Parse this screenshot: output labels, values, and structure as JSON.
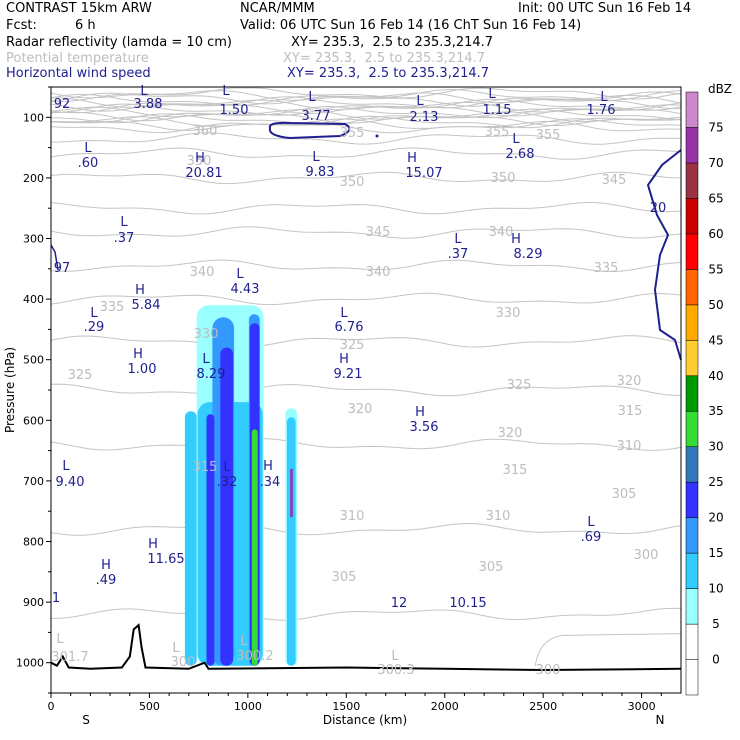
{
  "header": {
    "model": "CONTRAST 15km ARW",
    "org": "NCAR/MMM",
    "init": "Init: 00 UTC Sun 16 Feb 14",
    "fcst_label": "Fcst:",
    "fcst_value": "6 h",
    "valid": "Valid: 06 UTC Sun 16 Feb 14 (16 ChT Sun 16 Feb 14)",
    "fields": [
      {
        "name": "Radar reflectivity (lamda = 10 cm)",
        "xy": "XY= 235.3,  2.5 to 235.3,214.7",
        "color": "#000000"
      },
      {
        "name": "Potential temperature",
        "xy": "XY= 235.3,  2.5 to 235.3,214.7",
        "color": "#bdbdbd"
      },
      {
        "name": "Horizontal wind speed",
        "xy": "XY= 235.3,  2.5 to 235.3,214.7",
        "color": "#1f1f8f"
      }
    ]
  },
  "chart_data": {
    "type": "cross-section",
    "xlabel": "Distance (km)",
    "ylabel": "Pressure (hPa)",
    "xlim": [
      0,
      3200
    ],
    "ylim": [
      1050,
      50
    ],
    "xticks": [
      "0",
      "500",
      "1000",
      "1500",
      "2000",
      "2500",
      "3000"
    ],
    "yticks": [
      "100",
      "200",
      "300",
      "400",
      "500",
      "600",
      "700",
      "800",
      "900",
      "1000"
    ],
    "left_end": "S",
    "right_end": "N",
    "colorbar": {
      "unit": "dBZ",
      "levels": [
        "0",
        "5",
        "10",
        "15",
        "20",
        "25",
        "30",
        "35",
        "40",
        "45",
        "50",
        "55",
        "60",
        "65",
        "70",
        "75"
      ],
      "colors": [
        "#ffffff",
        "#99ffff",
        "#33ccff",
        "#3399ff",
        "#3333ff",
        "#3377bb",
        "#33dd33",
        "#009900",
        "#ffcc33",
        "#ffaa00",
        "#ff6600",
        "#ff0000",
        "#cc0000",
        "#993344",
        "#9933aa",
        "#cc88cc"
      ]
    },
    "theta_labels": [
      "360",
      "355",
      "355",
      "355",
      "350",
      "350",
      "350",
      "345",
      "345",
      "340",
      "340",
      "340",
      "335",
      "335",
      "330",
      "330",
      "325",
      "325",
      "325",
      "320",
      "320",
      "320",
      "315",
      "315",
      "315",
      "310",
      "310",
      "310",
      "305",
      "305",
      "305",
      "300"
    ],
    "wind_labels": [
      "92",
      "3.88",
      "1.50",
      "3.77",
      "2.13",
      "1.15",
      "1.76",
      ".60",
      "20.81",
      "9.83",
      "15.07",
      "2.68",
      ".37",
      ".37",
      "8.29",
      "97",
      "4.43",
      "5.84",
      ".29",
      "6.76",
      "1.00",
      "8.29",
      "9.21",
      "3.56",
      "9.40",
      ".32",
      ".34",
      ".69",
      "11.65",
      ".49",
      "12",
      "10.15",
      "1",
      "20"
    ],
    "wind_hl": [
      "L",
      "L",
      "L",
      "L",
      "L",
      "L",
      "L",
      "H",
      "L",
      "H",
      "L",
      "L",
      "L",
      "H",
      "L",
      "H",
      "L",
      "L",
      "H",
      "L",
      "H",
      "H",
      "L",
      "L",
      "H",
      "L",
      "H",
      "H"
    ],
    "surface_labels": [
      "301.7",
      "300",
      "300.2",
      "300.3",
      "300"
    ],
    "surface_hl": [
      "L",
      "L",
      "L",
      "L"
    ]
  }
}
